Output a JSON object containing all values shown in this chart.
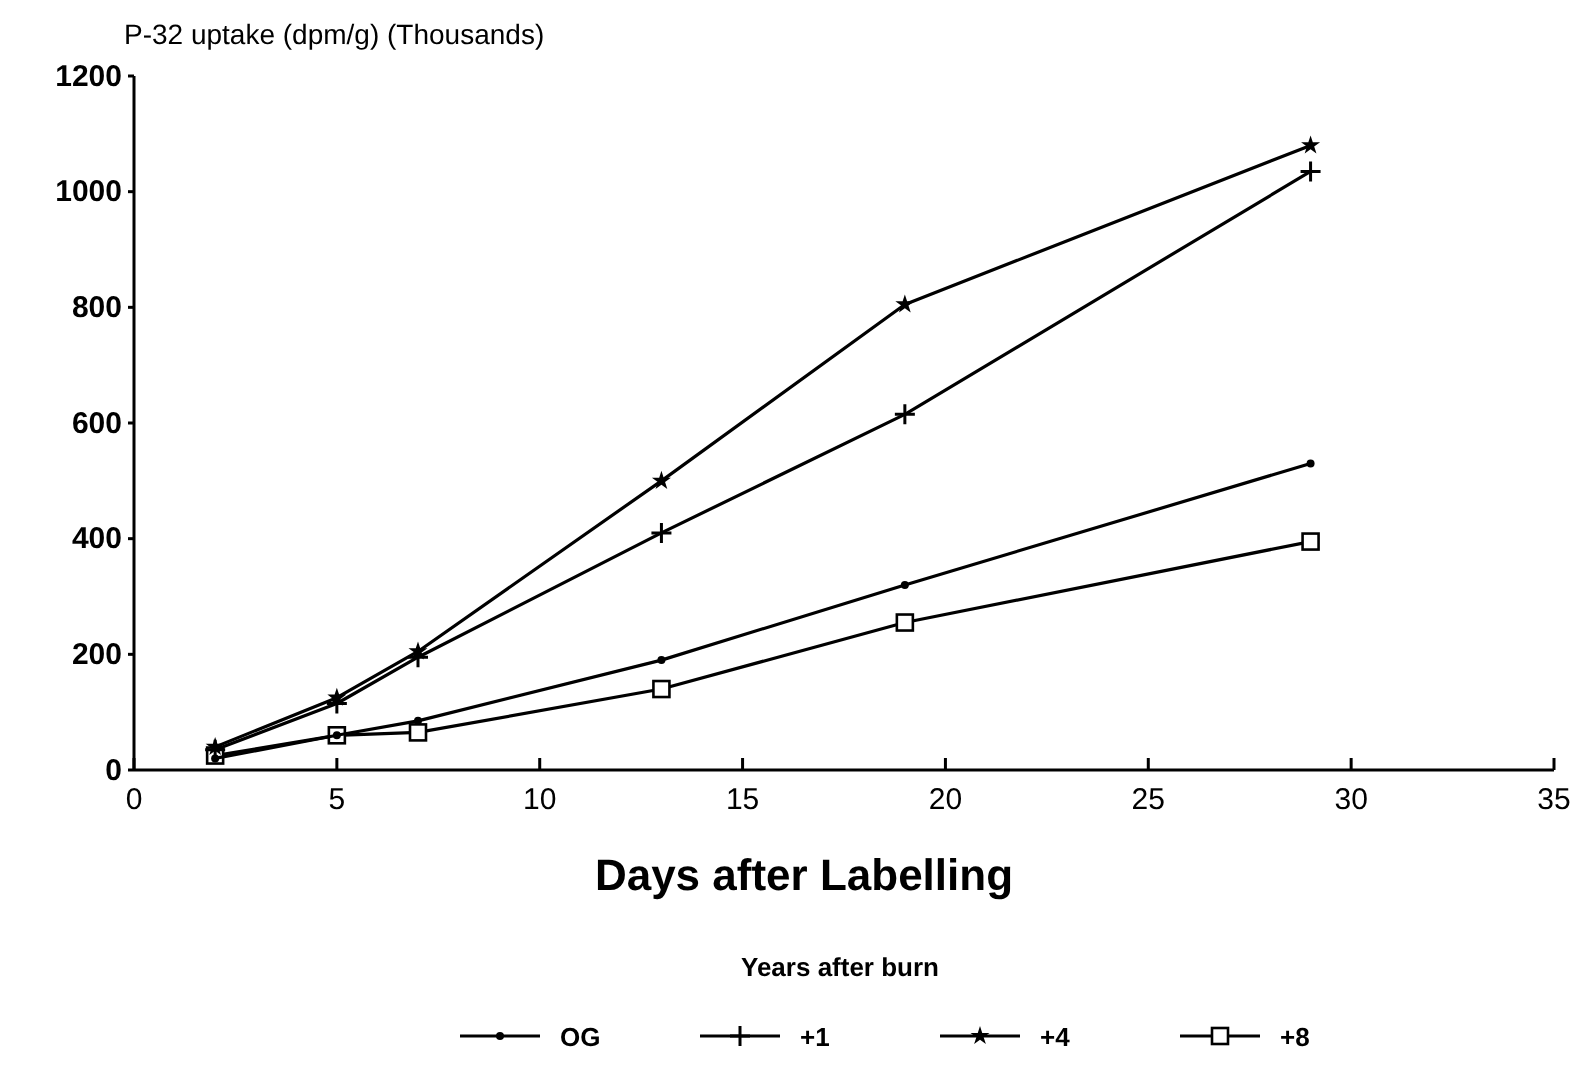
{
  "chart_data": {
    "type": "line",
    "ylabel": "P-32 uptake (dpm/g) (Thousands)",
    "xlabel": "Days after Labelling",
    "legend_title": "Years after burn",
    "legend": "bottom",
    "grid": false,
    "line_style": "solid",
    "x": [
      2,
      5,
      7,
      13,
      19,
      29
    ],
    "xlim": [
      0,
      35
    ],
    "xticks": [
      0,
      5,
      10,
      15,
      20,
      25,
      30,
      35
    ],
    "ylim": [
      0,
      1200
    ],
    "yticks": [
      0,
      200,
      400,
      600,
      800,
      1000,
      1200
    ],
    "series": [
      {
        "name": "OG",
        "color": "#000000",
        "marker": "circle",
        "values": [
          20,
          60,
          85,
          190,
          320,
          530
        ]
      },
      {
        "name": "+1",
        "color": "#000000",
        "marker": "cross",
        "values": [
          35,
          115,
          195,
          410,
          615,
          1035
        ]
      },
      {
        "name": "+4",
        "color": "#000000",
        "marker": "star",
        "values": [
          40,
          125,
          205,
          500,
          805,
          1080
        ]
      },
      {
        "name": "+8",
        "color": "#000000",
        "marker": "square",
        "values": [
          25,
          60,
          65,
          140,
          255,
          395
        ]
      }
    ]
  }
}
